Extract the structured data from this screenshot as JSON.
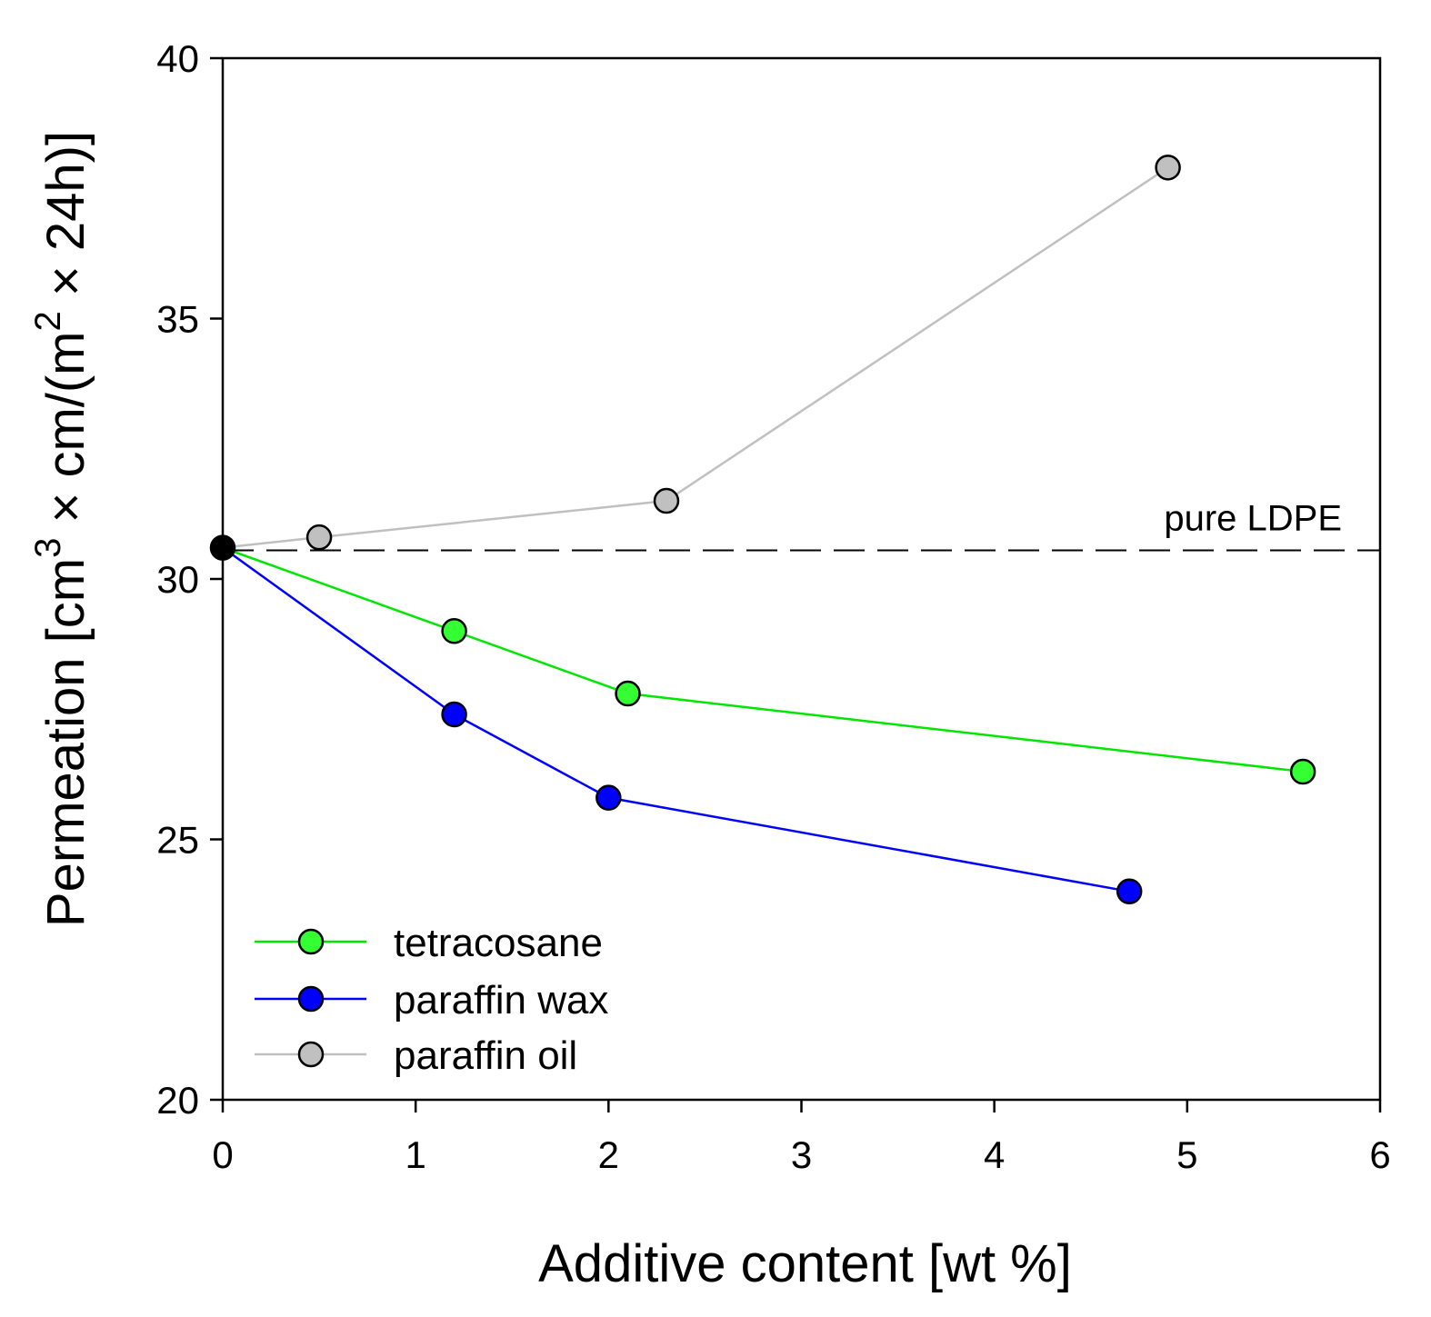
{
  "chart_data": {
    "type": "line",
    "title": "",
    "xlabel": "Additive content [wt %]",
    "ylabel_parts": [
      "Permeation [cm",
      "3",
      " × cm/(m",
      "2",
      " × 24h)]"
    ],
    "xlim": [
      0,
      6
    ],
    "ylim": [
      20,
      40
    ],
    "xticks": [
      0,
      1,
      2,
      3,
      4,
      5,
      6
    ],
    "yticks": [
      20,
      25,
      30,
      35,
      40
    ],
    "xtick_labels": [
      "0",
      "1",
      "2",
      "3",
      "4",
      "5",
      "6"
    ],
    "ytick_labels": [
      "20",
      "25",
      "30",
      "35",
      "40"
    ],
    "grid": false,
    "legend_position": "bottom-left",
    "series": [
      {
        "name": "tetracosane",
        "color": "#00e600",
        "marker_fill": "#33ff33",
        "x": [
          0,
          1.2,
          2.1,
          5.6
        ],
        "y": [
          30.6,
          29.0,
          27.8,
          26.3
        ]
      },
      {
        "name": "paraffin wax",
        "color": "#0000ff",
        "marker_fill": "#0000ff",
        "x": [
          0,
          1.2,
          2.0,
          4.7
        ],
        "y": [
          30.6,
          27.4,
          25.8,
          24.0
        ]
      },
      {
        "name": "paraffin oil",
        "color": "#c0c0c0",
        "marker_fill": "#c0c0c0",
        "x": [
          0,
          0.5,
          2.3,
          4.9
        ],
        "y": [
          30.6,
          30.8,
          31.5,
          37.9
        ]
      }
    ],
    "origin_point": {
      "x": 0,
      "y": 30.6,
      "color": "#000000"
    },
    "reference_line": {
      "y": 30.55,
      "label": "pure LDPE",
      "style": "dashed"
    }
  }
}
